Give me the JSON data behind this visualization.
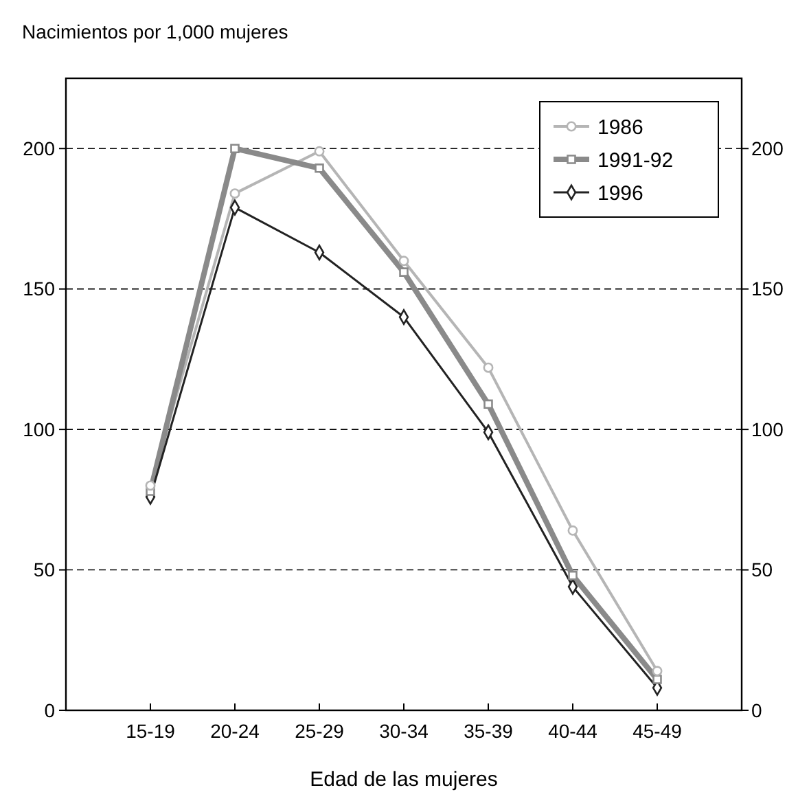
{
  "chart_data": {
    "type": "line",
    "ylabel": "Nacimientos por 1,000 mujeres",
    "xlabel": "Edad de las mujeres",
    "categories": [
      "15-19",
      "20-24",
      "25-29",
      "30-34",
      "35-39",
      "40-44",
      "45-49"
    ],
    "series": [
      {
        "name": "1986",
        "color": "#b5b5b5",
        "marker": "circle",
        "values": [
          80,
          184,
          199,
          160,
          122,
          64,
          14
        ]
      },
      {
        "name": "1991-92",
        "color": "#8a8a8a",
        "marker": "square",
        "values": [
          78,
          200,
          193,
          156,
          109,
          48,
          11
        ]
      },
      {
        "name": "1996",
        "color": "#222222",
        "marker": "diamond",
        "values": [
          76,
          179,
          163,
          140,
          99,
          44,
          8
        ]
      }
    ],
    "ylim": [
      0,
      225
    ],
    "yticks": [
      0,
      50,
      100,
      150,
      200
    ],
    "y2lim": [
      0,
      225
    ],
    "y2ticks": [
      0,
      50,
      100,
      150,
      200
    ],
    "grid": "y",
    "legend": "top right",
    "line_style": "solid"
  }
}
